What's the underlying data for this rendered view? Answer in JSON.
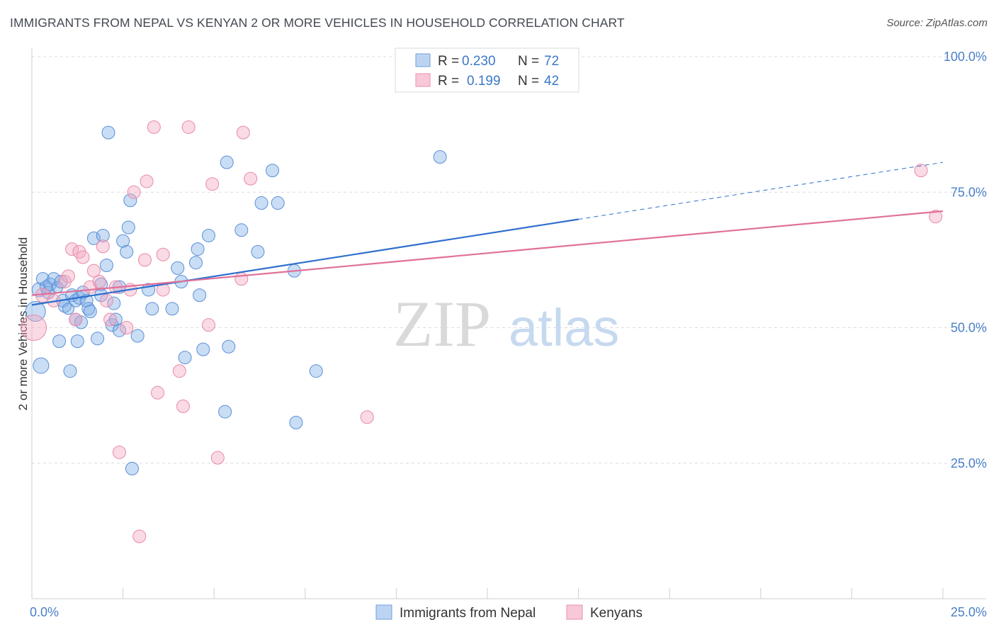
{
  "title": "IMMIGRANTS FROM NEPAL VS KENYAN 2 OR MORE VEHICLES IN HOUSEHOLD CORRELATION CHART",
  "source": "Source: ZipAtlas.com",
  "watermark": {
    "zip": "ZIP",
    "atlas": "atlas"
  },
  "chart_data": {
    "type": "scatter",
    "xlabel": "",
    "ylabel": "2 or more Vehicles in Household",
    "xlim": [
      0,
      25
    ],
    "ylim": [
      0,
      105
    ],
    "x_tick_labels": [
      {
        "value": 0,
        "label": "0.0%"
      },
      {
        "value": 25,
        "label": "25.0%"
      }
    ],
    "y_tick_labels": [
      {
        "value": 25,
        "label": "25.0%"
      },
      {
        "value": 50,
        "label": "50.0%"
      },
      {
        "value": 75,
        "label": "75.0%"
      },
      {
        "value": 100,
        "label": "100.0%"
      }
    ],
    "legend": {
      "r_label": "R =",
      "n_label": "N =",
      "entries": [
        {
          "name": "Immigrants from Nepal",
          "r": "0.230",
          "n": "72"
        },
        {
          "name": "Kenyans",
          "r": "0.199",
          "n": "42"
        }
      ]
    },
    "series": [
      {
        "name": "Immigrants from Nepal",
        "color": "#7faee6",
        "stroke": "#5b8fd6",
        "line_color": "#2e6fcc",
        "trend": {
          "x0": 0,
          "y0": 54.2,
          "x1": 15,
          "y1": 70,
          "x_dash_end": 25,
          "y_dash_end": 80.5
        },
        "points": [
          {
            "x": 0.1,
            "y": 53.0,
            "r": 14
          },
          {
            "x": 0.2,
            "y": 57.0,
            "r": 10
          },
          {
            "x": 0.25,
            "y": 43.0,
            "r": 11
          },
          {
            "x": 0.3,
            "y": 59.0,
            "r": 9
          },
          {
            "x": 0.4,
            "y": 57.5,
            "r": 9
          },
          {
            "x": 0.45,
            "y": 56.5,
            "r": 9
          },
          {
            "x": 0.5,
            "y": 58.0,
            "r": 9
          },
          {
            "x": 0.6,
            "y": 59.0,
            "r": 9
          },
          {
            "x": 0.7,
            "y": 57.5,
            "r": 8
          },
          {
            "x": 0.75,
            "y": 47.5,
            "r": 9
          },
          {
            "x": 0.8,
            "y": 58.5,
            "r": 9
          },
          {
            "x": 0.85,
            "y": 55.0,
            "r": 9
          },
          {
            "x": 0.9,
            "y": 54.0,
            "r": 9
          },
          {
            "x": 1.0,
            "y": 53.5,
            "r": 8
          },
          {
            "x": 1.05,
            "y": 42.0,
            "r": 9
          },
          {
            "x": 1.1,
            "y": 56.0,
            "r": 9
          },
          {
            "x": 1.2,
            "y": 51.5,
            "r": 9
          },
          {
            "x": 1.2,
            "y": 55.0,
            "r": 9
          },
          {
            "x": 1.25,
            "y": 47.5,
            "r": 9
          },
          {
            "x": 1.3,
            "y": 55.5,
            "r": 9
          },
          {
            "x": 1.35,
            "y": 51.0,
            "r": 9
          },
          {
            "x": 1.4,
            "y": 56.5,
            "r": 9
          },
          {
            "x": 1.5,
            "y": 55.0,
            "r": 9
          },
          {
            "x": 1.55,
            "y": 53.5,
            "r": 9
          },
          {
            "x": 1.6,
            "y": 53.0,
            "r": 9
          },
          {
            "x": 1.7,
            "y": 66.5,
            "r": 9
          },
          {
            "x": 1.8,
            "y": 48.0,
            "r": 9
          },
          {
            "x": 1.9,
            "y": 56.0,
            "r": 9
          },
          {
            "x": 1.9,
            "y": 58.0,
            "r": 9
          },
          {
            "x": 1.95,
            "y": 67.0,
            "r": 9
          },
          {
            "x": 2.05,
            "y": 61.5,
            "r": 9
          },
          {
            "x": 2.1,
            "y": 86.0,
            "r": 9
          },
          {
            "x": 2.2,
            "y": 50.5,
            "r": 9
          },
          {
            "x": 2.25,
            "y": 54.5,
            "r": 9
          },
          {
            "x": 2.3,
            "y": 51.5,
            "r": 9
          },
          {
            "x": 2.4,
            "y": 49.5,
            "r": 9
          },
          {
            "x": 2.4,
            "y": 57.5,
            "r": 9
          },
          {
            "x": 2.5,
            "y": 66.0,
            "r": 9
          },
          {
            "x": 2.6,
            "y": 64.0,
            "r": 9
          },
          {
            "x": 2.65,
            "y": 68.5,
            "r": 9
          },
          {
            "x": 2.7,
            "y": 73.5,
            "r": 9
          },
          {
            "x": 2.75,
            "y": 24.0,
            "r": 9
          },
          {
            "x": 2.9,
            "y": 48.5,
            "r": 9
          },
          {
            "x": 3.2,
            "y": 57.0,
            "r": 9
          },
          {
            "x": 3.3,
            "y": 53.5,
            "r": 9
          },
          {
            "x": 3.85,
            "y": 53.5,
            "r": 9
          },
          {
            "x": 4.0,
            "y": 61.0,
            "r": 9
          },
          {
            "x": 4.1,
            "y": 58.5,
            "r": 9
          },
          {
            "x": 4.2,
            "y": 44.5,
            "r": 9
          },
          {
            "x": 4.5,
            "y": 62.0,
            "r": 9
          },
          {
            "x": 4.55,
            "y": 64.5,
            "r": 9
          },
          {
            "x": 4.6,
            "y": 56.0,
            "r": 9
          },
          {
            "x": 4.7,
            "y": 46.0,
            "r": 9
          },
          {
            "x": 4.85,
            "y": 67.0,
            "r": 9
          },
          {
            "x": 5.3,
            "y": 34.5,
            "r": 9
          },
          {
            "x": 5.35,
            "y": 80.5,
            "r": 9
          },
          {
            "x": 5.4,
            "y": 46.5,
            "r": 9
          },
          {
            "x": 5.75,
            "y": 68.0,
            "r": 9
          },
          {
            "x": 6.2,
            "y": 64.0,
            "r": 9
          },
          {
            "x": 6.3,
            "y": 73.0,
            "r": 9
          },
          {
            "x": 6.6,
            "y": 79.0,
            "r": 9
          },
          {
            "x": 6.75,
            "y": 73.0,
            "r": 9
          },
          {
            "x": 7.2,
            "y": 60.5,
            "r": 9
          },
          {
            "x": 7.25,
            "y": 32.5,
            "r": 9
          },
          {
            "x": 7.8,
            "y": 42.0,
            "r": 9
          },
          {
            "x": 11.2,
            "y": 81.5,
            "r": 9
          }
        ]
      },
      {
        "name": "Kenyans",
        "color": "#f4a7bf",
        "stroke": "#e88aa8",
        "line_color": "#e0709a",
        "trend": {
          "x0": 0,
          "y0": 56.0,
          "x1": 25,
          "y1": 71.5
        },
        "points": [
          {
            "x": 0.05,
            "y": 50.0,
            "r": 18
          },
          {
            "x": 0.3,
            "y": 56.0,
            "r": 10
          },
          {
            "x": 0.6,
            "y": 55.0,
            "r": 9
          },
          {
            "x": 0.9,
            "y": 58.5,
            "r": 9
          },
          {
            "x": 1.0,
            "y": 59.5,
            "r": 9
          },
          {
            "x": 1.1,
            "y": 64.5,
            "r": 9
          },
          {
            "x": 1.2,
            "y": 51.5,
            "r": 9
          },
          {
            "x": 1.3,
            "y": 64.0,
            "r": 9
          },
          {
            "x": 1.4,
            "y": 63.0,
            "r": 9
          },
          {
            "x": 1.6,
            "y": 57.5,
            "r": 9
          },
          {
            "x": 1.7,
            "y": 60.5,
            "r": 9
          },
          {
            "x": 1.85,
            "y": 58.5,
            "r": 9
          },
          {
            "x": 1.95,
            "y": 65.0,
            "r": 9
          },
          {
            "x": 2.05,
            "y": 55.0,
            "r": 9
          },
          {
            "x": 2.15,
            "y": 51.5,
            "r": 9
          },
          {
            "x": 2.3,
            "y": 57.5,
            "r": 9
          },
          {
            "x": 2.4,
            "y": 27.0,
            "r": 9
          },
          {
            "x": 2.6,
            "y": 50.0,
            "r": 9
          },
          {
            "x": 2.7,
            "y": 57.0,
            "r": 9
          },
          {
            "x": 2.8,
            "y": 75.0,
            "r": 9
          },
          {
            "x": 2.95,
            "y": 11.5,
            "r": 9
          },
          {
            "x": 3.1,
            "y": 62.5,
            "r": 9
          },
          {
            "x": 3.15,
            "y": 77.0,
            "r": 9
          },
          {
            "x": 3.35,
            "y": 87.0,
            "r": 9
          },
          {
            "x": 3.45,
            "y": 38.0,
            "r": 9
          },
          {
            "x": 3.6,
            "y": 57.0,
            "r": 9
          },
          {
            "x": 3.6,
            "y": 63.5,
            "r": 9
          },
          {
            "x": 4.05,
            "y": 42.0,
            "r": 9
          },
          {
            "x": 4.15,
            "y": 35.5,
            "r": 9
          },
          {
            "x": 4.3,
            "y": 87.0,
            "r": 9
          },
          {
            "x": 4.85,
            "y": 50.5,
            "r": 9
          },
          {
            "x": 4.95,
            "y": 76.5,
            "r": 9
          },
          {
            "x": 5.1,
            "y": 26.0,
            "r": 9
          },
          {
            "x": 5.75,
            "y": 59.0,
            "r": 9
          },
          {
            "x": 5.8,
            "y": 86.0,
            "r": 9
          },
          {
            "x": 6.0,
            "y": 77.5,
            "r": 9
          },
          {
            "x": 9.2,
            "y": 33.5,
            "r": 9
          },
          {
            "x": 24.4,
            "y": 79.0,
            "r": 9
          },
          {
            "x": 24.8,
            "y": 70.5,
            "r": 9
          }
        ]
      }
    ]
  }
}
